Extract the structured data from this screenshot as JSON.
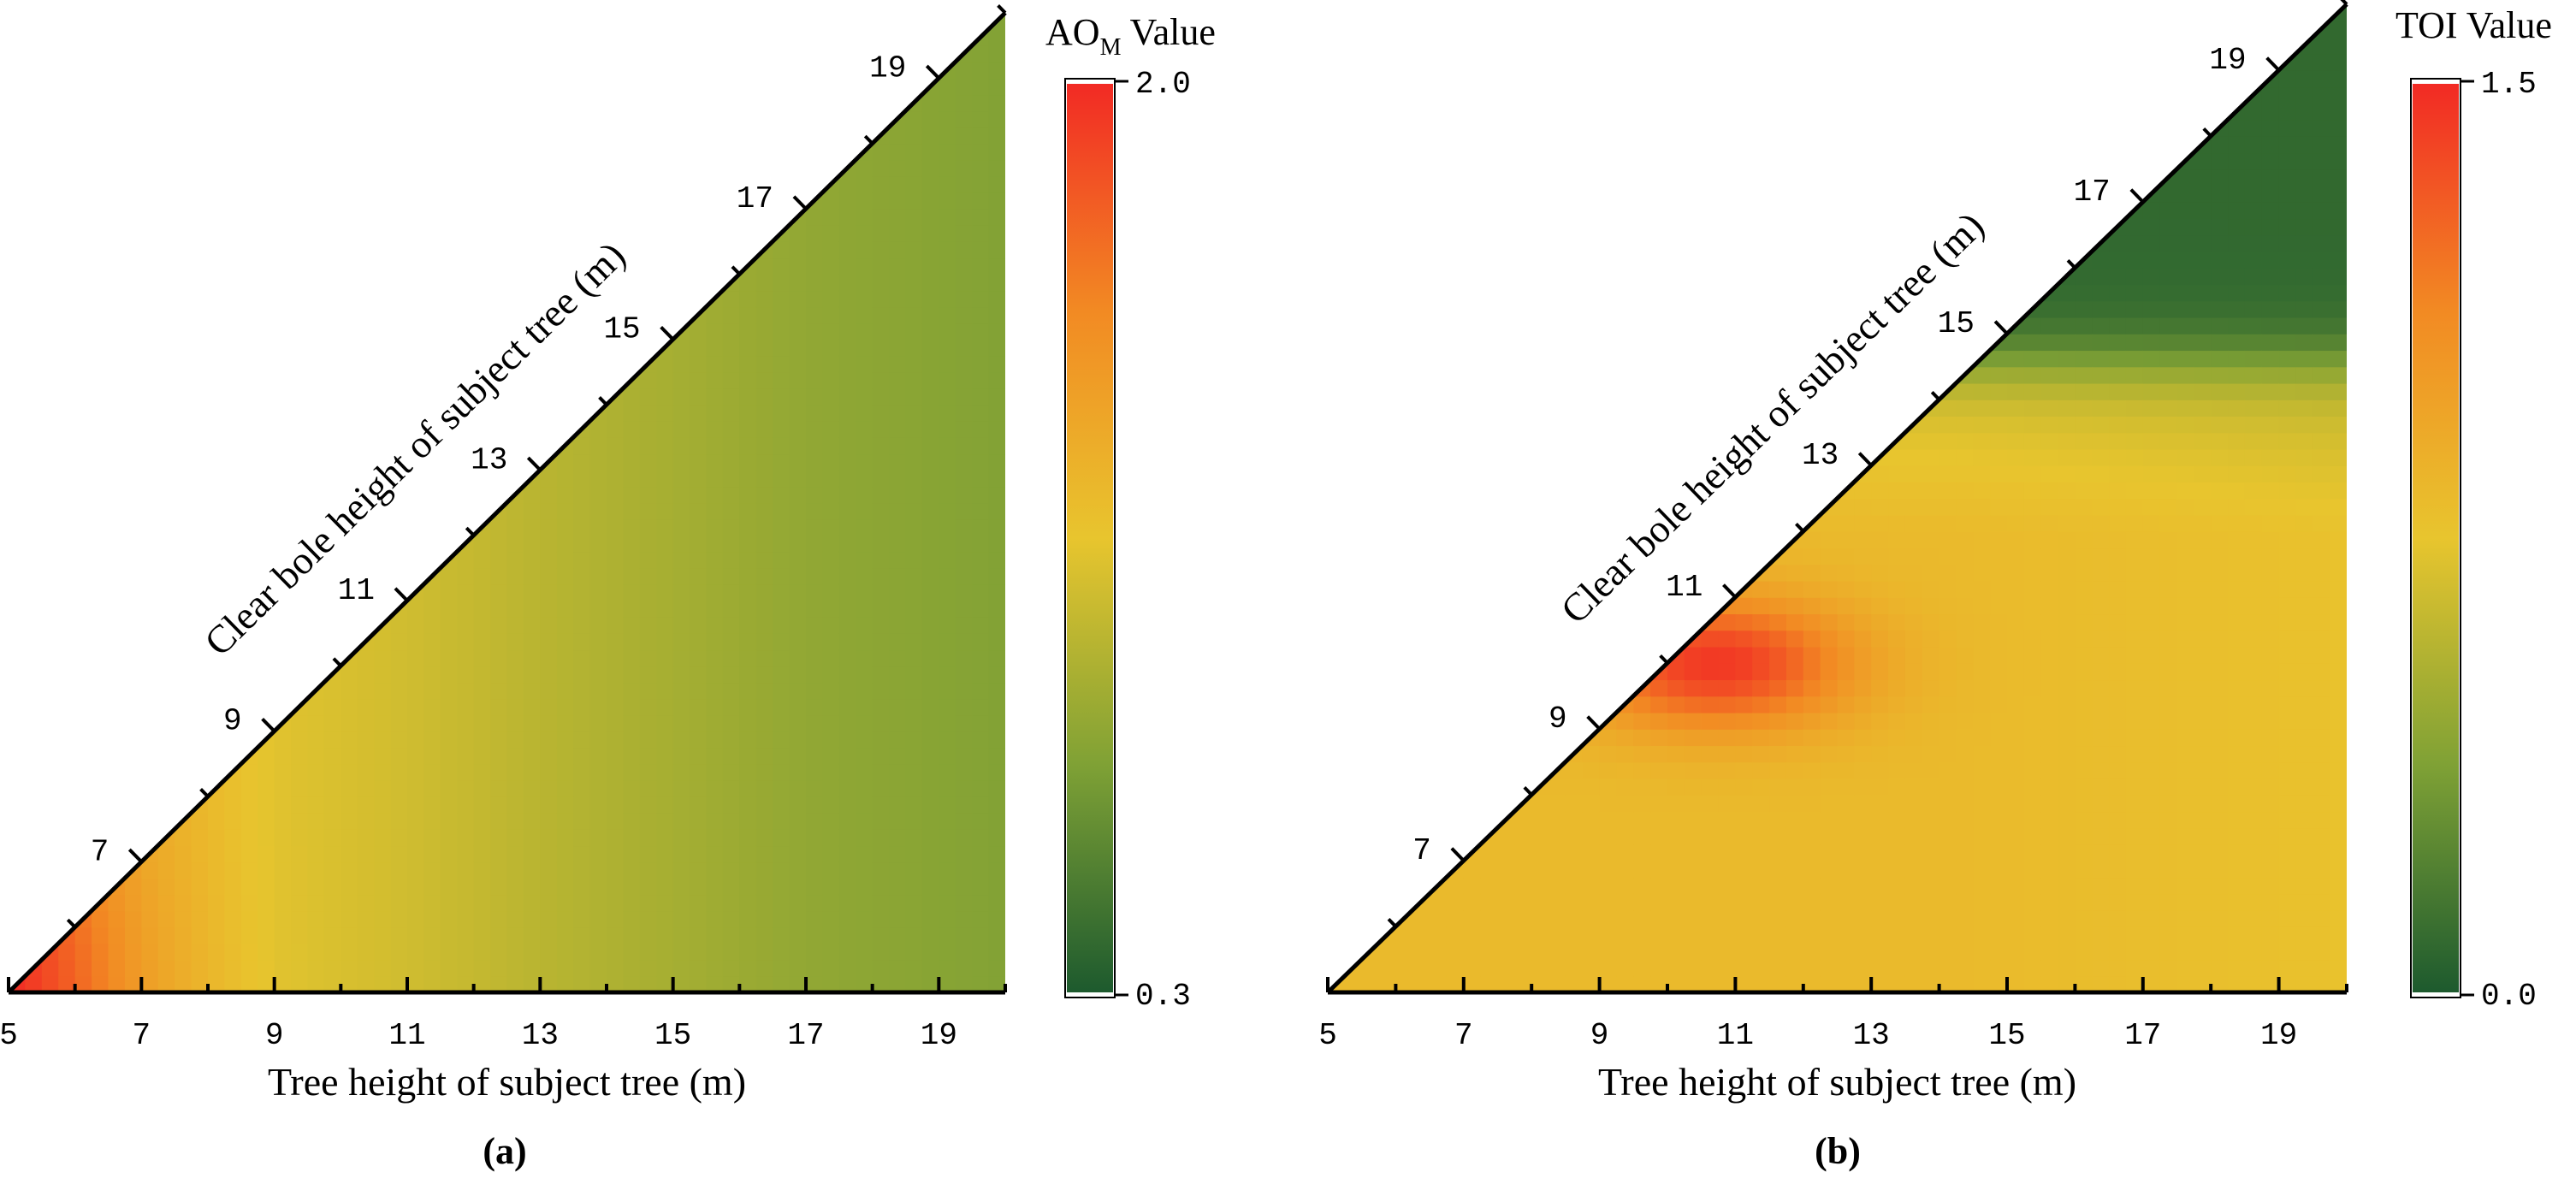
{
  "chart_data": [
    {
      "type": "heatmap",
      "panel_label": "(a)",
      "xlabel": "Tree height of subject tree (m)",
      "ylabel": "Clear bole height of subject tree (m)",
      "x_ticks": [
        "5",
        "7",
        "9",
        "11",
        "13",
        "15",
        "17",
        "19"
      ],
      "y_ticks": [
        "7",
        "9",
        "11",
        "13",
        "15",
        "17",
        "19"
      ],
      "xlim": [
        5,
        20
      ],
      "ylim": [
        5,
        20
      ],
      "domain": "lower triangle (clear bole height <= tree height)",
      "colorbar": {
        "title_main": "AO",
        "title_sub": "M",
        "title_rest": " Value",
        "max": 2.0,
        "min": 0.3,
        "max_label": "2.0",
        "min_label": "0.3",
        "colormap": [
          "#1d5a2e",
          "#7fa135",
          "#e8c52e",
          "#f28a23",
          "#f22a24"
        ]
      },
      "field": {
        "description": "value decreases with tree height",
        "profile_x": [
          5,
          7,
          9,
          11,
          13,
          15,
          17,
          20
        ],
        "profile_v": [
          1.75,
          1.35,
          1.12,
          1.05,
          0.96,
          0.88,
          0.8,
          0.74
        ]
      }
    },
    {
      "type": "heatmap",
      "panel_label": "(b)",
      "xlabel": "Tree height of subject tree (m)",
      "ylabel": "Clear bole height of subject tree (m)",
      "x_ticks": [
        "5",
        "7",
        "9",
        "11",
        "13",
        "15",
        "17",
        "19"
      ],
      "y_ticks": [
        "7",
        "9",
        "11",
        "13",
        "15",
        "17",
        "19"
      ],
      "xlim": [
        5,
        20
      ],
      "ylim": [
        5,
        20
      ],
      "domain": "lower triangle (clear bole height <= tree height)",
      "colorbar": {
        "title_main": "TOI",
        "title_sub": "",
        "title_rest": " Value",
        "max": 1.5,
        "min": 0.0,
        "max_label": "1.5",
        "min_label": "0.0",
        "colormap": [
          "#1d5a2e",
          "#7fa135",
          "#e8c52e",
          "#f28a23",
          "#f22a24"
        ]
      },
      "field": {
        "description": "moderate values below 14 m clear bole height, hot spot near tree height 10.5 m / clear bole height 10 m, low values above 15 m clear bole height",
        "base_value": 0.82,
        "hotspot": {
          "x": 10.7,
          "y": 10.0,
          "peak": 1.45
        },
        "high_bole_value": 0.08
      }
    }
  ]
}
